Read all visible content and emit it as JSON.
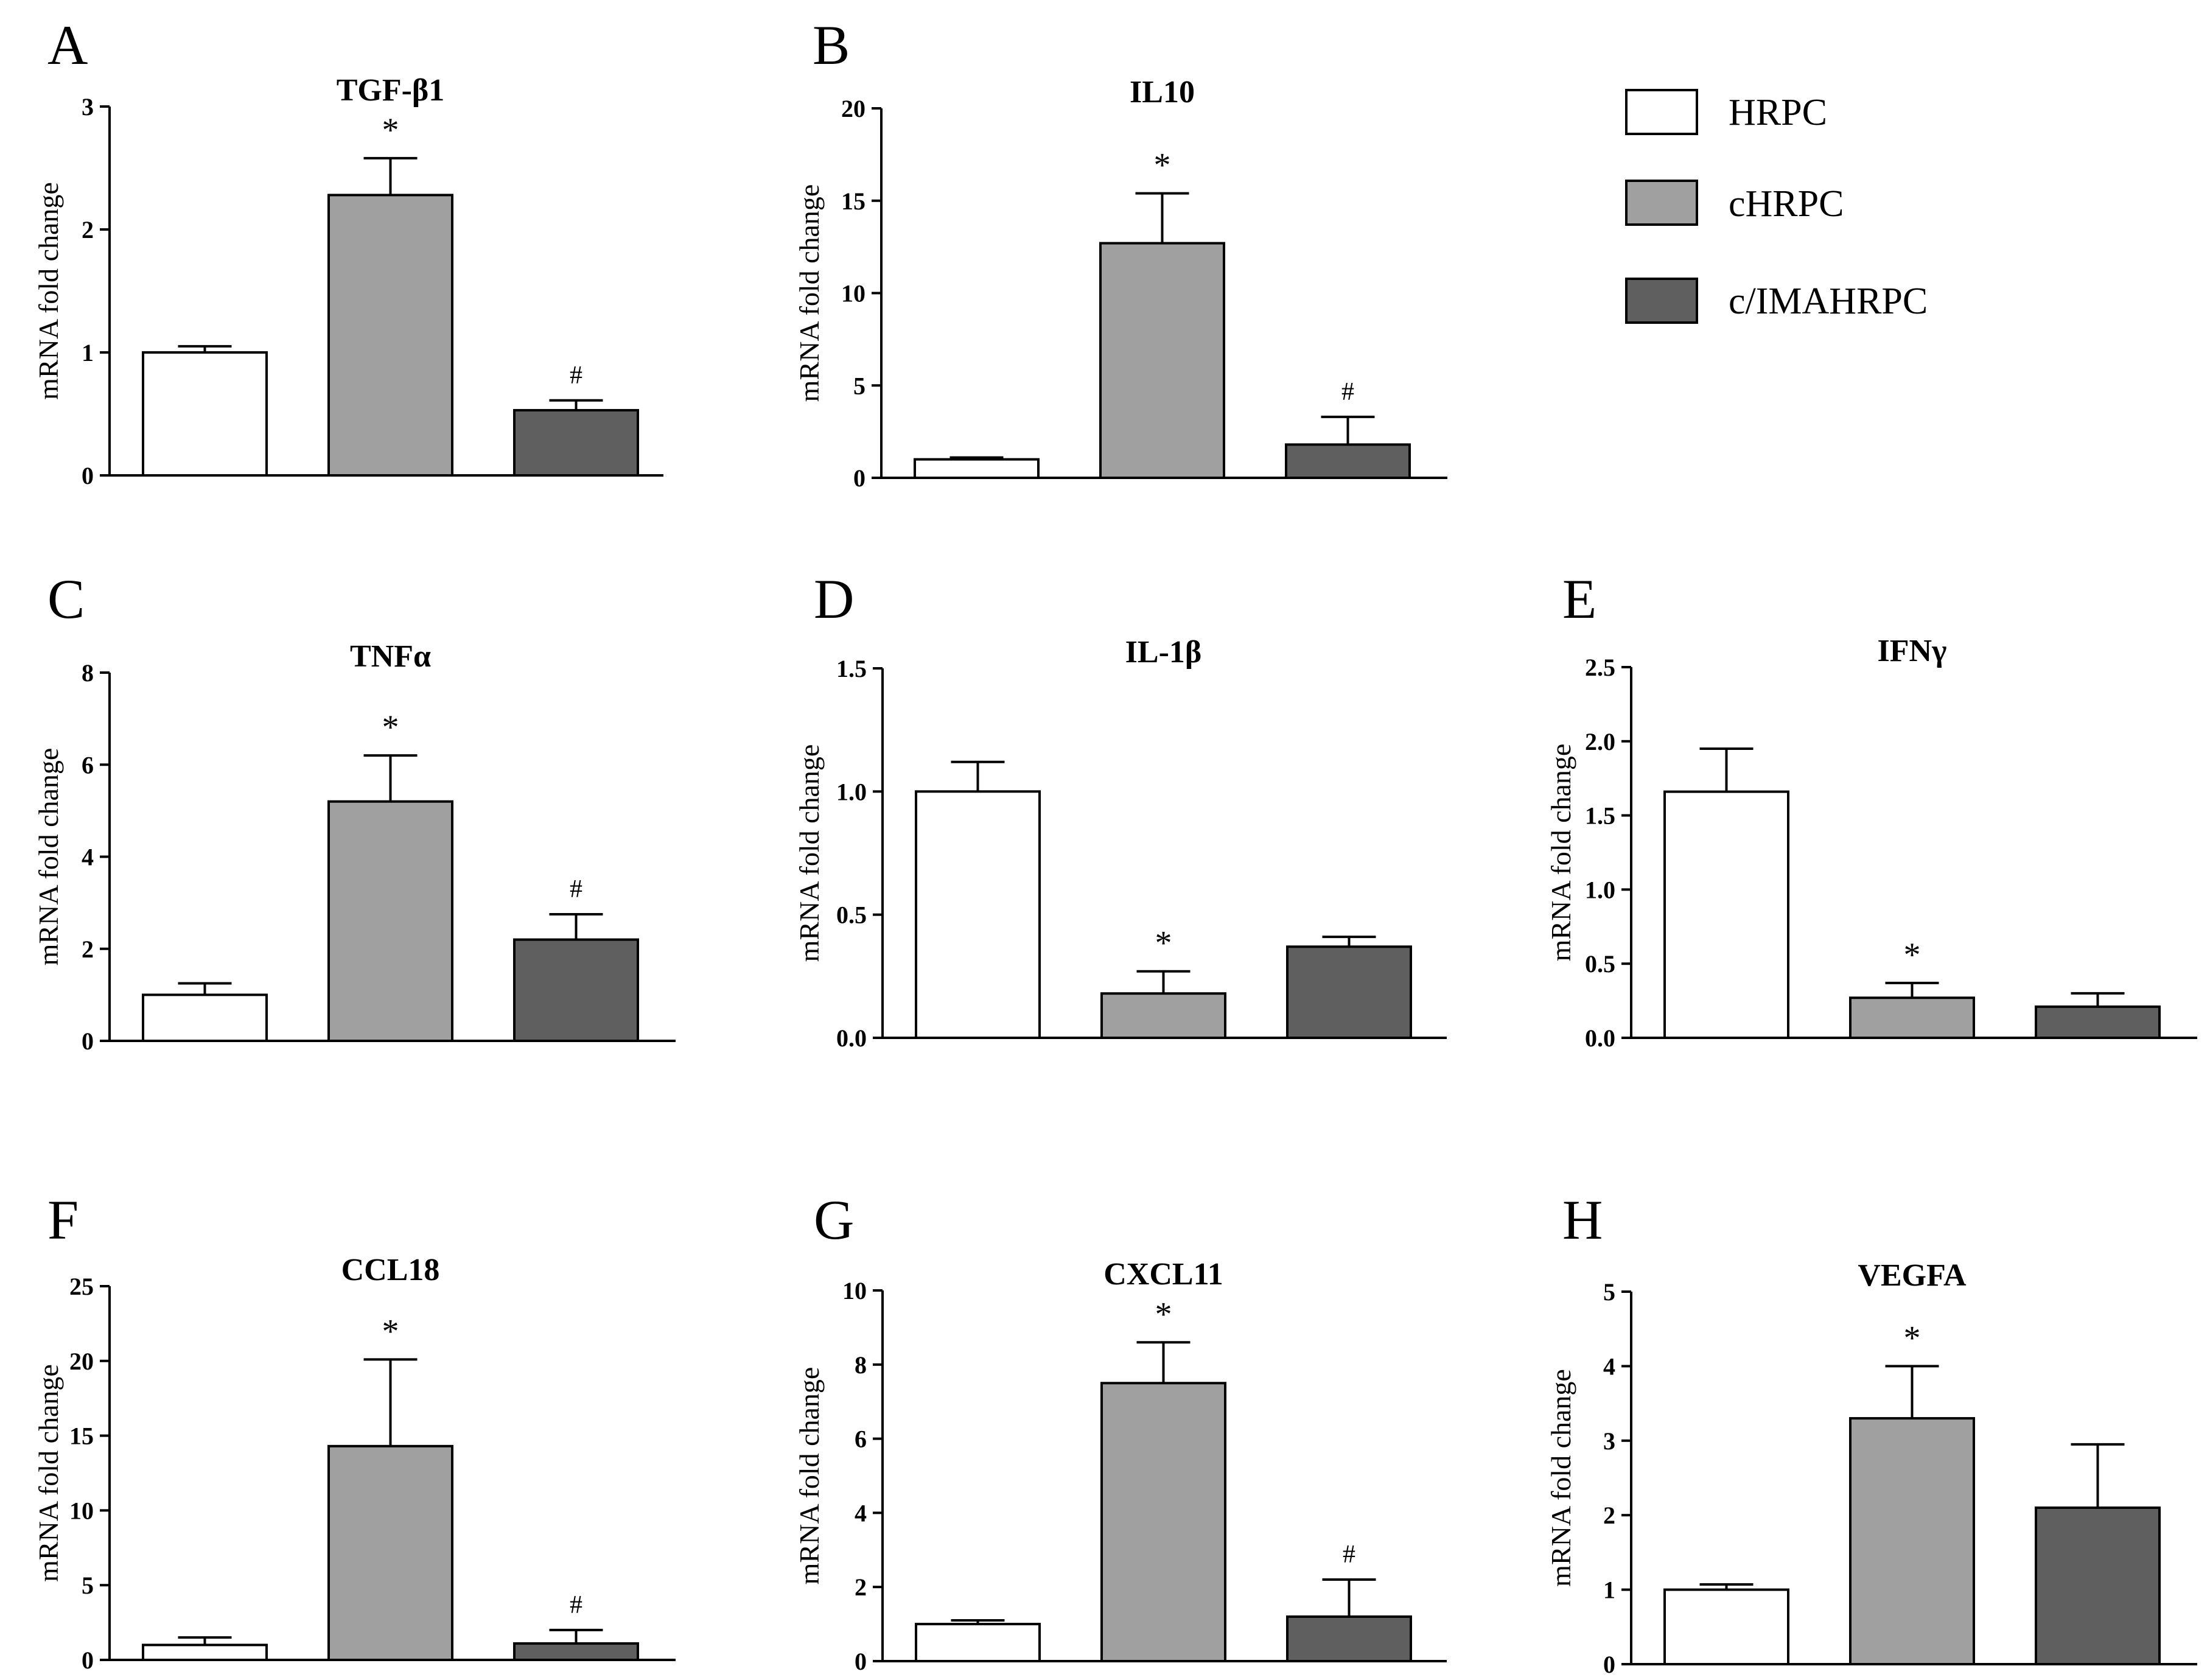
{
  "legend": {
    "entries": [
      {
        "label": "HRPC",
        "color": "#ffffff"
      },
      {
        "label": "cHRPC",
        "color": "#a0a0a0"
      },
      {
        "label": "c/IMAHRPC",
        "color": "#5f5f5f"
      }
    ]
  },
  "axis_label": "mRNA fold change",
  "chart_data": [
    {
      "panel": "A",
      "type": "bar",
      "title": "TGF-β1",
      "ylabel": "mRNA fold change",
      "categories": [
        "HRPC",
        "cHRPC",
        "c/IMAHRPC"
      ],
      "values": [
        1.0,
        2.28,
        0.53
      ],
      "errors": [
        0.05,
        0.3,
        0.08
      ],
      "marks": [
        "",
        "*",
        "#"
      ],
      "ylim": [
        0,
        3
      ],
      "yticks": [
        "0",
        "1",
        "2",
        "3"
      ]
    },
    {
      "panel": "B",
      "type": "bar",
      "title": "IL10",
      "ylabel": "mRNA fold change",
      "categories": [
        "HRPC",
        "cHRPC",
        "c/IMAHRPC"
      ],
      "values": [
        1.0,
        12.7,
        1.8
      ],
      "errors": [
        0.1,
        2.7,
        1.5
      ],
      "marks": [
        "",
        "*",
        "#"
      ],
      "ylim": [
        0,
        20
      ],
      "yticks": [
        "0",
        "5",
        "10",
        "15",
        "20"
      ]
    },
    {
      "panel": "C",
      "type": "bar",
      "title": "TNFα",
      "ylabel": "mRNA fold change",
      "categories": [
        "HRPC",
        "cHRPC",
        "c/IMAHRPC"
      ],
      "values": [
        1.0,
        5.2,
        2.2
      ],
      "errors": [
        0.25,
        1.0,
        0.55
      ],
      "marks": [
        "",
        "*",
        "#"
      ],
      "ylim": [
        0,
        8
      ],
      "yticks": [
        "0",
        "2",
        "4",
        "6",
        "8"
      ]
    },
    {
      "panel": "D",
      "type": "bar",
      "title": "IL-1β",
      "ylabel": "mRNA fold change",
      "categories": [
        "HRPC",
        "cHRPC",
        "c/IMAHRPC"
      ],
      "values": [
        1.0,
        0.18,
        0.37
      ],
      "errors": [
        0.12,
        0.09,
        0.04
      ],
      "marks": [
        "",
        "*",
        ""
      ],
      "ylim": [
        0,
        1.5
      ],
      "yticks": [
        "0.0",
        "0.5",
        "1.0",
        "1.5"
      ]
    },
    {
      "panel": "E",
      "type": "bar",
      "title": "IFNγ",
      "ylabel": "mRNA fold change",
      "categories": [
        "HRPC",
        "cHRPC",
        "c/IMAHRPC"
      ],
      "values": [
        1.66,
        0.27,
        0.21
      ],
      "errors": [
        0.29,
        0.1,
        0.09
      ],
      "marks": [
        "",
        "*",
        ""
      ],
      "ylim": [
        0,
        2.5
      ],
      "yticks": [
        "0.0",
        "0.5",
        "1.0",
        "1.5",
        "2.0",
        "2.5"
      ]
    },
    {
      "panel": "F",
      "type": "bar",
      "title": "CCL18",
      "ylabel": "mRNA fold change",
      "categories": [
        "HRPC",
        "cHRPC",
        "c/IMAHRPC"
      ],
      "values": [
        1.0,
        14.3,
        1.1
      ],
      "errors": [
        0.5,
        5.8,
        0.9
      ],
      "marks": [
        "",
        "*",
        "#"
      ],
      "ylim": [
        0,
        25
      ],
      "yticks": [
        "0",
        "5",
        "10",
        "15",
        "20",
        "25"
      ]
    },
    {
      "panel": "G",
      "type": "bar",
      "title": "CXCL11",
      "ylabel": "mRNA fold change",
      "categories": [
        "HRPC",
        "cHRPC",
        "c/IMAHRPC"
      ],
      "values": [
        1.0,
        7.5,
        1.2
      ],
      "errors": [
        0.1,
        1.1,
        1.0
      ],
      "marks": [
        "",
        "*",
        "#"
      ],
      "ylim": [
        0,
        10
      ],
      "yticks": [
        "0",
        "2",
        "4",
        "6",
        "8",
        "10"
      ]
    },
    {
      "panel": "H",
      "type": "bar",
      "title": "VEGFA",
      "ylabel": "mRNA fold change",
      "categories": [
        "HRPC",
        "cHRPC",
        "c/IMAHRPC"
      ],
      "values": [
        1.0,
        3.3,
        2.1
      ],
      "errors": [
        0.07,
        0.7,
        0.85
      ],
      "marks": [
        "",
        "*",
        ""
      ],
      "ylim": [
        0,
        5
      ],
      "yticks": [
        "0",
        "1",
        "2",
        "3",
        "4",
        "5"
      ]
    }
  ]
}
